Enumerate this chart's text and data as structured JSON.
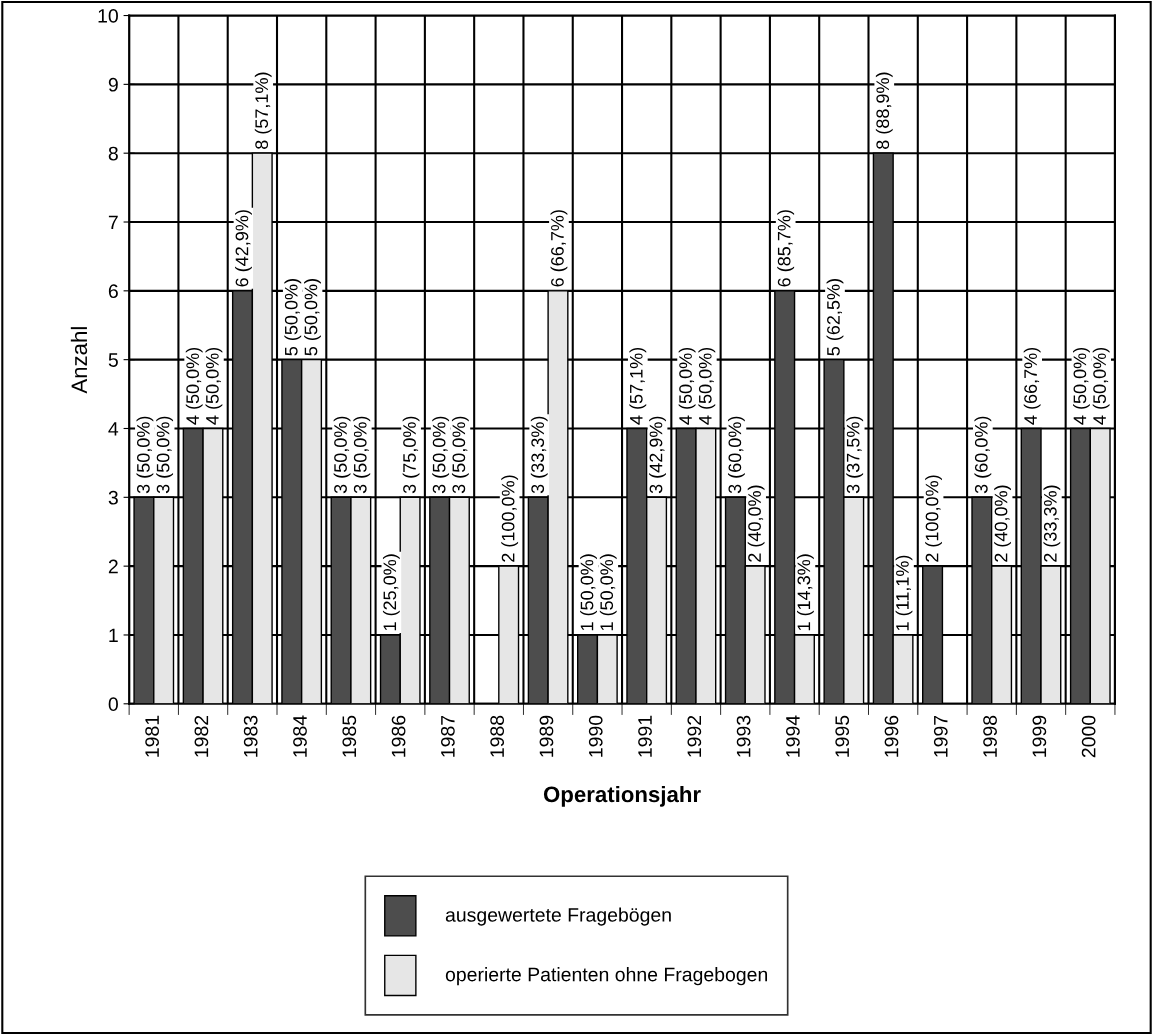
{
  "chart_data": {
    "type": "bar",
    "xlabel": "Operationsjahr",
    "ylabel": "Anzahl",
    "categories": [
      "1981",
      "1982",
      "1983",
      "1984",
      "1985",
      "1986",
      "1987",
      "1988",
      "1989",
      "1990",
      "1991",
      "1992",
      "1993",
      "1994",
      "1995",
      "1996",
      "1997",
      "1998",
      "1999",
      "2000"
    ],
    "series": [
      {
        "name": "ausgewertete Fragebögen",
        "color": "#4d4d4d",
        "values": [
          3,
          4,
          6,
          5,
          3,
          1,
          3,
          0,
          3,
          1,
          4,
          4,
          3,
          6,
          5,
          8,
          2,
          3,
          4,
          4
        ],
        "value_labels": [
          "3 (50,0%)",
          "4 (50,0%)",
          "6 (42,9%)",
          "5 (50,0%)",
          "3 (50,0%)",
          "1 (25,0%)",
          "3 (50,0%)",
          null,
          "3 (33,3%)",
          "1 (50,0%)",
          "4 (57,1%)",
          "4 (50,0%)",
          "3 (60,0%)",
          "6 (85,7%)",
          "5 (62,5%)",
          "8 (88,9%)",
          "2 (100,0%)",
          "3 (60,0%)",
          "4 (66,7%)",
          "4 (50,0%)"
        ]
      },
      {
        "name": "operierte Patienten ohne Fragebogen",
        "color": "#e6e6e6",
        "values": [
          3,
          4,
          8,
          5,
          3,
          3,
          3,
          2,
          6,
          1,
          3,
          4,
          2,
          1,
          3,
          1,
          0,
          2,
          2,
          4
        ],
        "value_labels": [
          "3 (50,0%)",
          "4 (50,0%)",
          "8 (57,1%)",
          "5 (50,0%)",
          "3 (50,0%)",
          "3 (75,0%)",
          "3 (50,0%)",
          "2 (100,0%)",
          "6 (66,7%)",
          "1 (50,0%)",
          "3 (42,9%)",
          "4 (50,0%)",
          "2 (40,0%)",
          "1 (14,3%)",
          "3 (37,5%)",
          "1 (11,1%)",
          null,
          "2 (40,0%)",
          "2 (33,3%)",
          "4 (50,0%)"
        ]
      }
    ],
    "ylim": [
      0,
      10
    ],
    "yticks": [
      0,
      1,
      2,
      3,
      4,
      5,
      6,
      7,
      8,
      9,
      10
    ],
    "grid": true,
    "legend": "bottom"
  }
}
